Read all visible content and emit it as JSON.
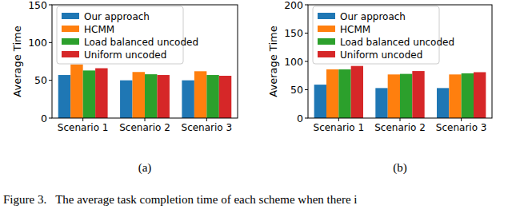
{
  "chart_data": [
    {
      "type": "bar",
      "title": "(a)",
      "y_label": "Average Time",
      "categories": [
        "Scenario 1",
        "Scenario 2",
        "Scenario 3"
      ],
      "series": [
        {
          "name": "Our approach",
          "color": "#1f77b4",
          "values": [
            57,
            50,
            50
          ]
        },
        {
          "name": "HCMM",
          "color": "#ff7f0e",
          "values": [
            71,
            61,
            62
          ]
        },
        {
          "name": "Load balanced uncoded",
          "color": "#2ca02c",
          "values": [
            63,
            58,
            57
          ]
        },
        {
          "name": "Uniform uncoded",
          "color": "#d62728",
          "values": [
            66,
            57,
            56
          ]
        }
      ],
      "ylim": [
        0,
        150
      ],
      "yticks": [
        0,
        50,
        100,
        150
      ],
      "grid": false,
      "legend": "upper left"
    },
    {
      "type": "bar",
      "title": "(b)",
      "y_label": "Average Time",
      "categories": [
        "Scenario 1",
        "Scenario 2",
        "Scenario 3"
      ],
      "series": [
        {
          "name": "Our approach",
          "color": "#1f77b4",
          "values": [
            59,
            53,
            53
          ]
        },
        {
          "name": "HCMM",
          "color": "#ff7f0e",
          "values": [
            86,
            77,
            77
          ]
        },
        {
          "name": "Load balanced uncoded",
          "color": "#2ca02c",
          "values": [
            86,
            78,
            79
          ]
        },
        {
          "name": "Uniform uncoded",
          "color": "#d62728",
          "values": [
            92,
            83,
            81
          ]
        }
      ],
      "ylim": [
        0,
        200
      ],
      "yticks": [
        0,
        50,
        100,
        150,
        200
      ],
      "grid": false,
      "legend": "upper left"
    }
  ],
  "caption": "Figure 3.   The average task completion time of each scheme when there i"
}
